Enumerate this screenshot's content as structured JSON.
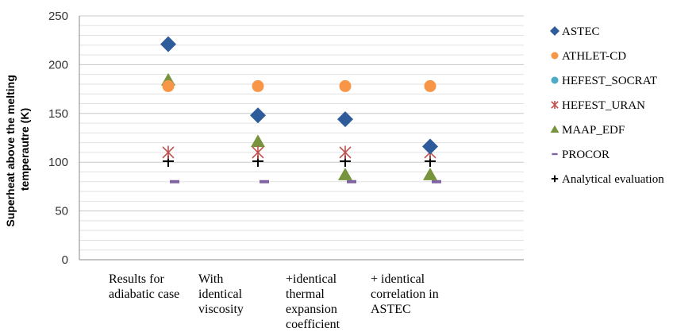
{
  "chart_data": {
    "type": "scatter",
    "ylabel_lines": [
      "Superheat above the melting",
      "temperautre (K)"
    ],
    "ylim": [
      0,
      250
    ],
    "yticks": [
      0,
      50,
      100,
      150,
      200,
      250
    ],
    "minor_grid_step": 10,
    "grid": true,
    "legend_position": "right",
    "categories": [
      [
        "Results for",
        "adiabatic case"
      ],
      [
        "With",
        "identical",
        "viscosity"
      ],
      [
        "+identical",
        "thermal",
        "expansion",
        "coefficient"
      ],
      [
        "+ identical",
        "correlation in",
        "ASTEC"
      ]
    ],
    "series": [
      {
        "name": "ASTEC",
        "marker": "diamond",
        "color": "#2e5b9a",
        "values": [
          221,
          148,
          144,
          116
        ]
      },
      {
        "name": "ATHLET-CD",
        "marker": "circle",
        "color": "#f79646",
        "values": [
          178,
          178,
          178,
          178
        ]
      },
      {
        "name": "HEFEST_SOCRAT",
        "marker": "circle",
        "color": "#4bacc6",
        "values": [
          null,
          null,
          null,
          null
        ]
      },
      {
        "name": "HEFEST_URAN",
        "marker": "star",
        "color": "#c0504d",
        "values": [
          110,
          110,
          110,
          110
        ]
      },
      {
        "name": "MAAP_EDF",
        "marker": "triangle",
        "color": "#77933c",
        "values": [
          184,
          121,
          87,
          87
        ]
      },
      {
        "name": "PROCOR",
        "marker": "dash",
        "color": "#8064a2",
        "values": [
          80,
          80,
          80,
          80
        ]
      },
      {
        "name": "Analytical evaluation",
        "marker": "plus",
        "color": "#000000",
        "values": [
          101,
          101,
          101,
          101
        ]
      }
    ]
  }
}
